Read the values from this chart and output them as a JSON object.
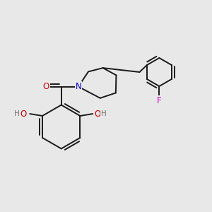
{
  "background_color": "#e8e8e8",
  "bond_color": "#1a1a1a",
  "bond_width": 1.4,
  "atom_colors": {
    "O": "#cc0000",
    "N": "#0000cc",
    "F": "#cc00cc",
    "H": "#707070",
    "C": "#1a1a1a"
  },
  "font_size_atom": 8.5,
  "font_size_H": 7.5
}
